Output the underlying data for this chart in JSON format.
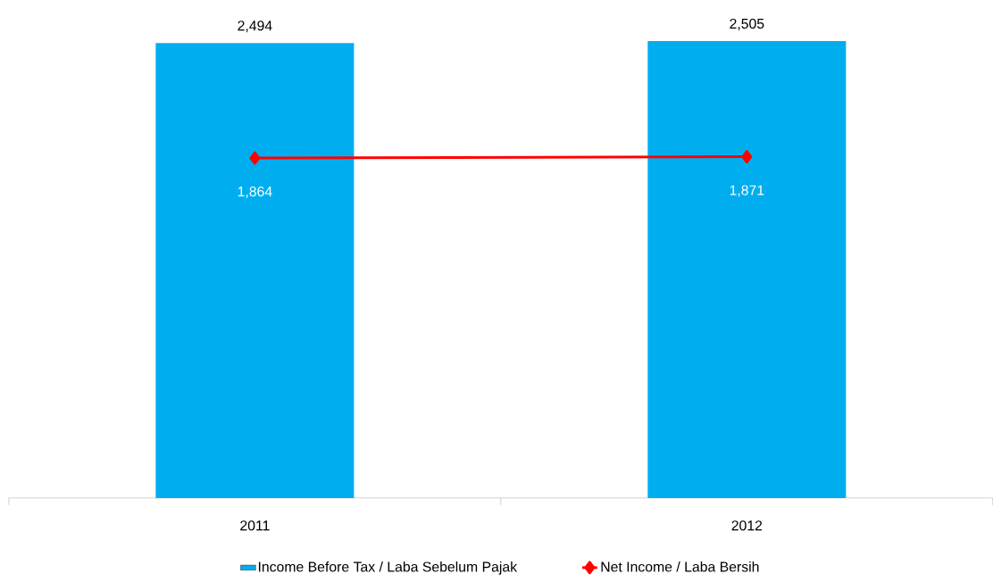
{
  "chart_data": {
    "type": "bar",
    "categories": [
      "2011",
      "2012"
    ],
    "series": [
      {
        "name": "Income Before Tax / Laba Sebelum Pajak",
        "color": "#00aeef",
        "values": [
          2494,
          2505
        ],
        "value_labels": [
          "2,494",
          "2,505"
        ]
      },
      {
        "name": "Net Income  / Laba Bersih",
        "type": "line",
        "color": "#ff0000",
        "values": [
          1864,
          1871
        ],
        "value_labels": [
          "1,864",
          "1,871"
        ],
        "marker": "diamond"
      }
    ],
    "legend": "bottom",
    "grid": false
  }
}
